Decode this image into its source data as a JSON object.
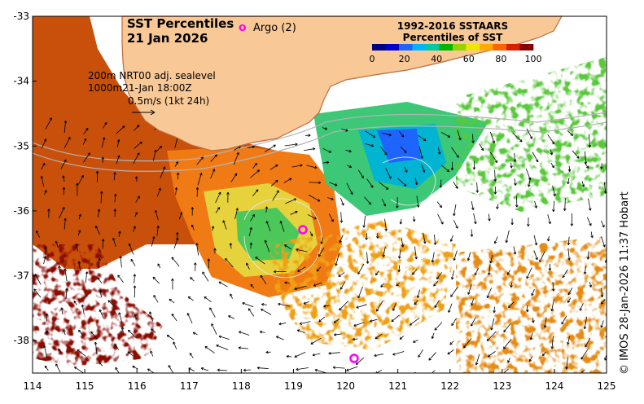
{
  "title": {
    "line1": "SST Percentiles",
    "line2": "21 Jan 2026"
  },
  "argo": {
    "marker": "o",
    "label": "Argo (2)",
    "color": "#ff00ff",
    "floats_shown": 2
  },
  "legend": {
    "line1": "1992-2016 SSTAARS",
    "line2": "Percentiles of SST",
    "ticks": [
      "0",
      "20",
      "40",
      "60",
      "80",
      "100"
    ],
    "colors": [
      "#000080",
      "#0000cd",
      "#1e64ff",
      "#00b4ff",
      "#00c8a0",
      "#00b400",
      "#96d200",
      "#f0e600",
      "#ffaa00",
      "#ff6400",
      "#dc1e00",
      "#8b0000"
    ]
  },
  "annotation": {
    "line1": "200m  NRT00 adj. sealevel",
    "line2": "1000m21-Jan 18:00Z",
    "scale": "0.5m/s (1kt 24h)"
  },
  "x_axis": {
    "ticks": [
      "114",
      "115",
      "116",
      "117",
      "118",
      "119",
      "120",
      "121",
      "122",
      "123",
      "124",
      "125"
    ],
    "range": [
      114,
      125
    ]
  },
  "y_axis": {
    "ticks": [
      "-33",
      "-34",
      "-35",
      "-36",
      "-37",
      "-38"
    ],
    "range": [
      -38.5,
      -33
    ]
  },
  "credit": "© IMOS 28-Jan-2026 11:37 Hobart",
  "colors": {
    "land": "#f8c896",
    "coast": "#c06a3c",
    "isobath": "#b4b4b4",
    "no_data": "#ffffff",
    "frame": "#000000"
  }
}
